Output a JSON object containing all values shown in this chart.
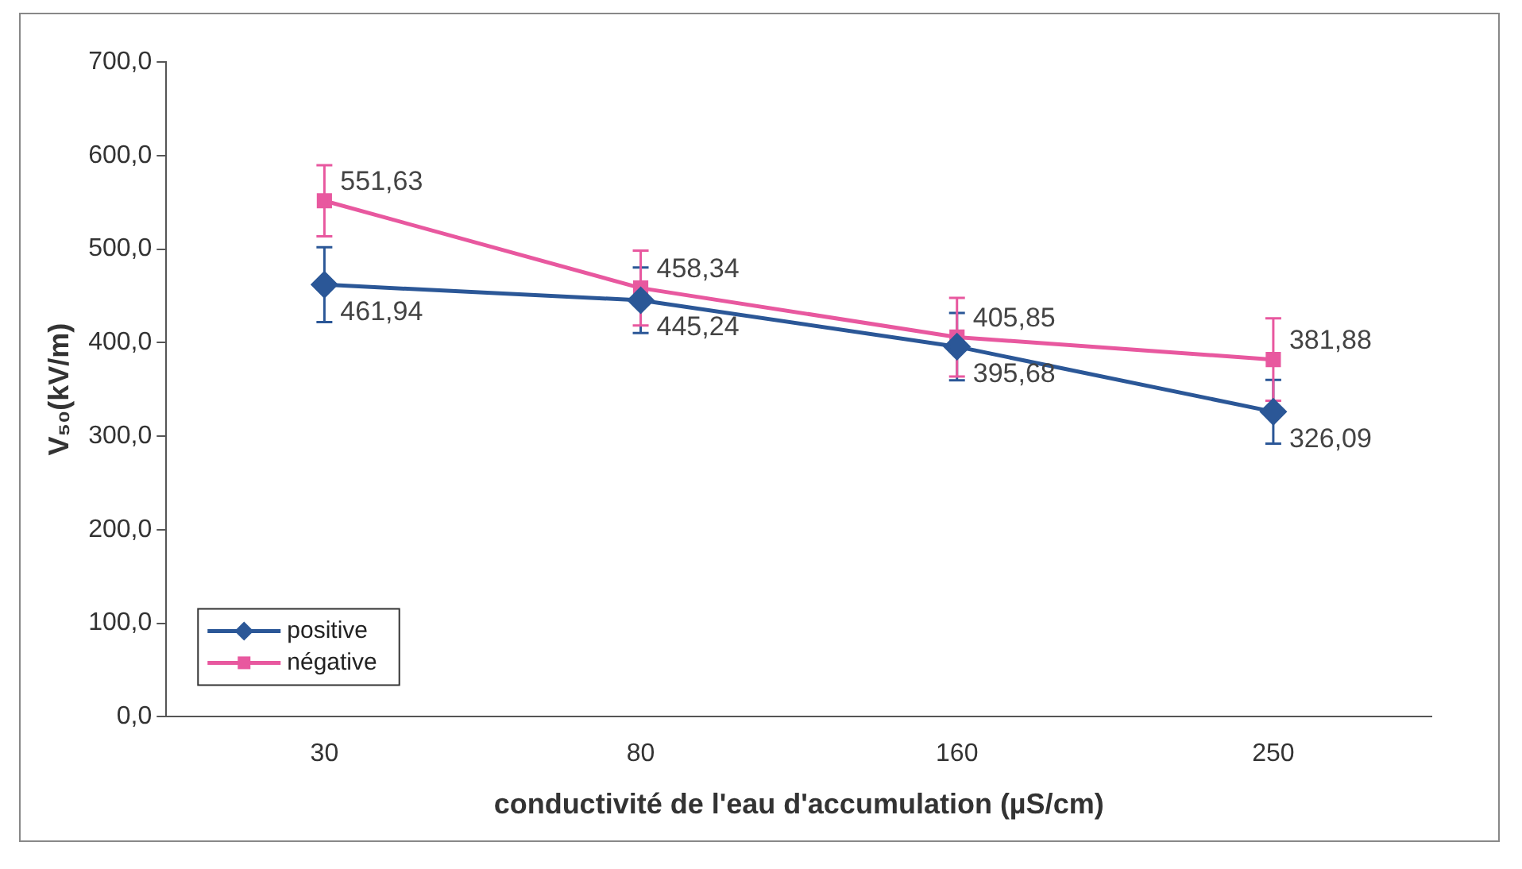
{
  "chart_data": {
    "type": "line",
    "xlabel": "conductivité de l'eau d'accumulation (µS/cm)",
    "ylabel": "V₅₀(kV/m)",
    "categories": [
      "30",
      "80",
      "160",
      "250"
    ],
    "series": [
      {
        "name": "positive",
        "color": "#2b5797",
        "marker": "diamond",
        "values": [
          461.94,
          445.24,
          395.68,
          326.09
        ],
        "errors": [
          40,
          35,
          36,
          34
        ],
        "value_labels": [
          "461,94",
          "445,24",
          "395,68",
          "326,09"
        ]
      },
      {
        "name": "négative",
        "color": "#e8589f",
        "marker": "square",
        "values": [
          551.63,
          458.34,
          405.85,
          381.88
        ],
        "errors": [
          38,
          40,
          42,
          44
        ],
        "value_labels": [
          "551,63",
          "458,34",
          "405,85",
          "381,88"
        ]
      }
    ],
    "ylim": [
      0,
      700
    ],
    "yticks": [
      {
        "value": 0,
        "label": "0,0"
      },
      {
        "value": 100,
        "label": "100,0"
      },
      {
        "value": 200,
        "label": "200,0"
      },
      {
        "value": 300,
        "label": "300,0"
      },
      {
        "value": 400,
        "label": "400,0"
      },
      {
        "value": 500,
        "label": "500,0"
      },
      {
        "value": 600,
        "label": "600,0"
      },
      {
        "value": 700,
        "label": "700,0"
      }
    ],
    "legend": "bottom left",
    "grid": false
  }
}
